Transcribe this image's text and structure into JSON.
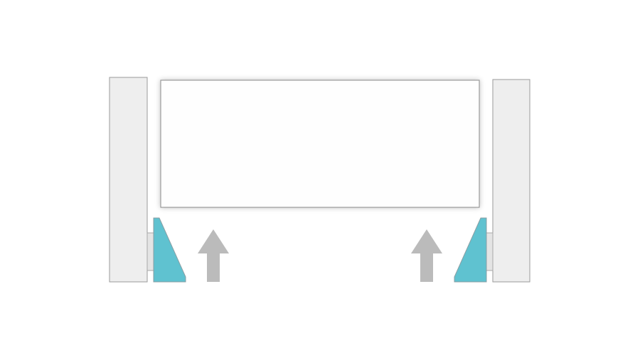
{
  "diagram": {
    "description_free": true,
    "colors": {
      "background": "#ffffff",
      "post_fill": "#eeeeee",
      "post_stroke": "#9a9a9a",
      "panel_fill": "#fefefe",
      "panel_stroke": "#8a8a8a",
      "bracket_fill": "#5fc2d0",
      "bracket_stroke": "#8a9ea3",
      "bracket_pad_fill": "#e4e4e4",
      "arrow_fill": "#bbbbbb"
    },
    "elements": {
      "left_post": "post",
      "right_post": "post",
      "panel": "panel",
      "left_bracket": "wedge-bracket",
      "right_bracket": "wedge-bracket",
      "left_arrow": "up-arrow",
      "right_arrow": "up-arrow"
    }
  }
}
